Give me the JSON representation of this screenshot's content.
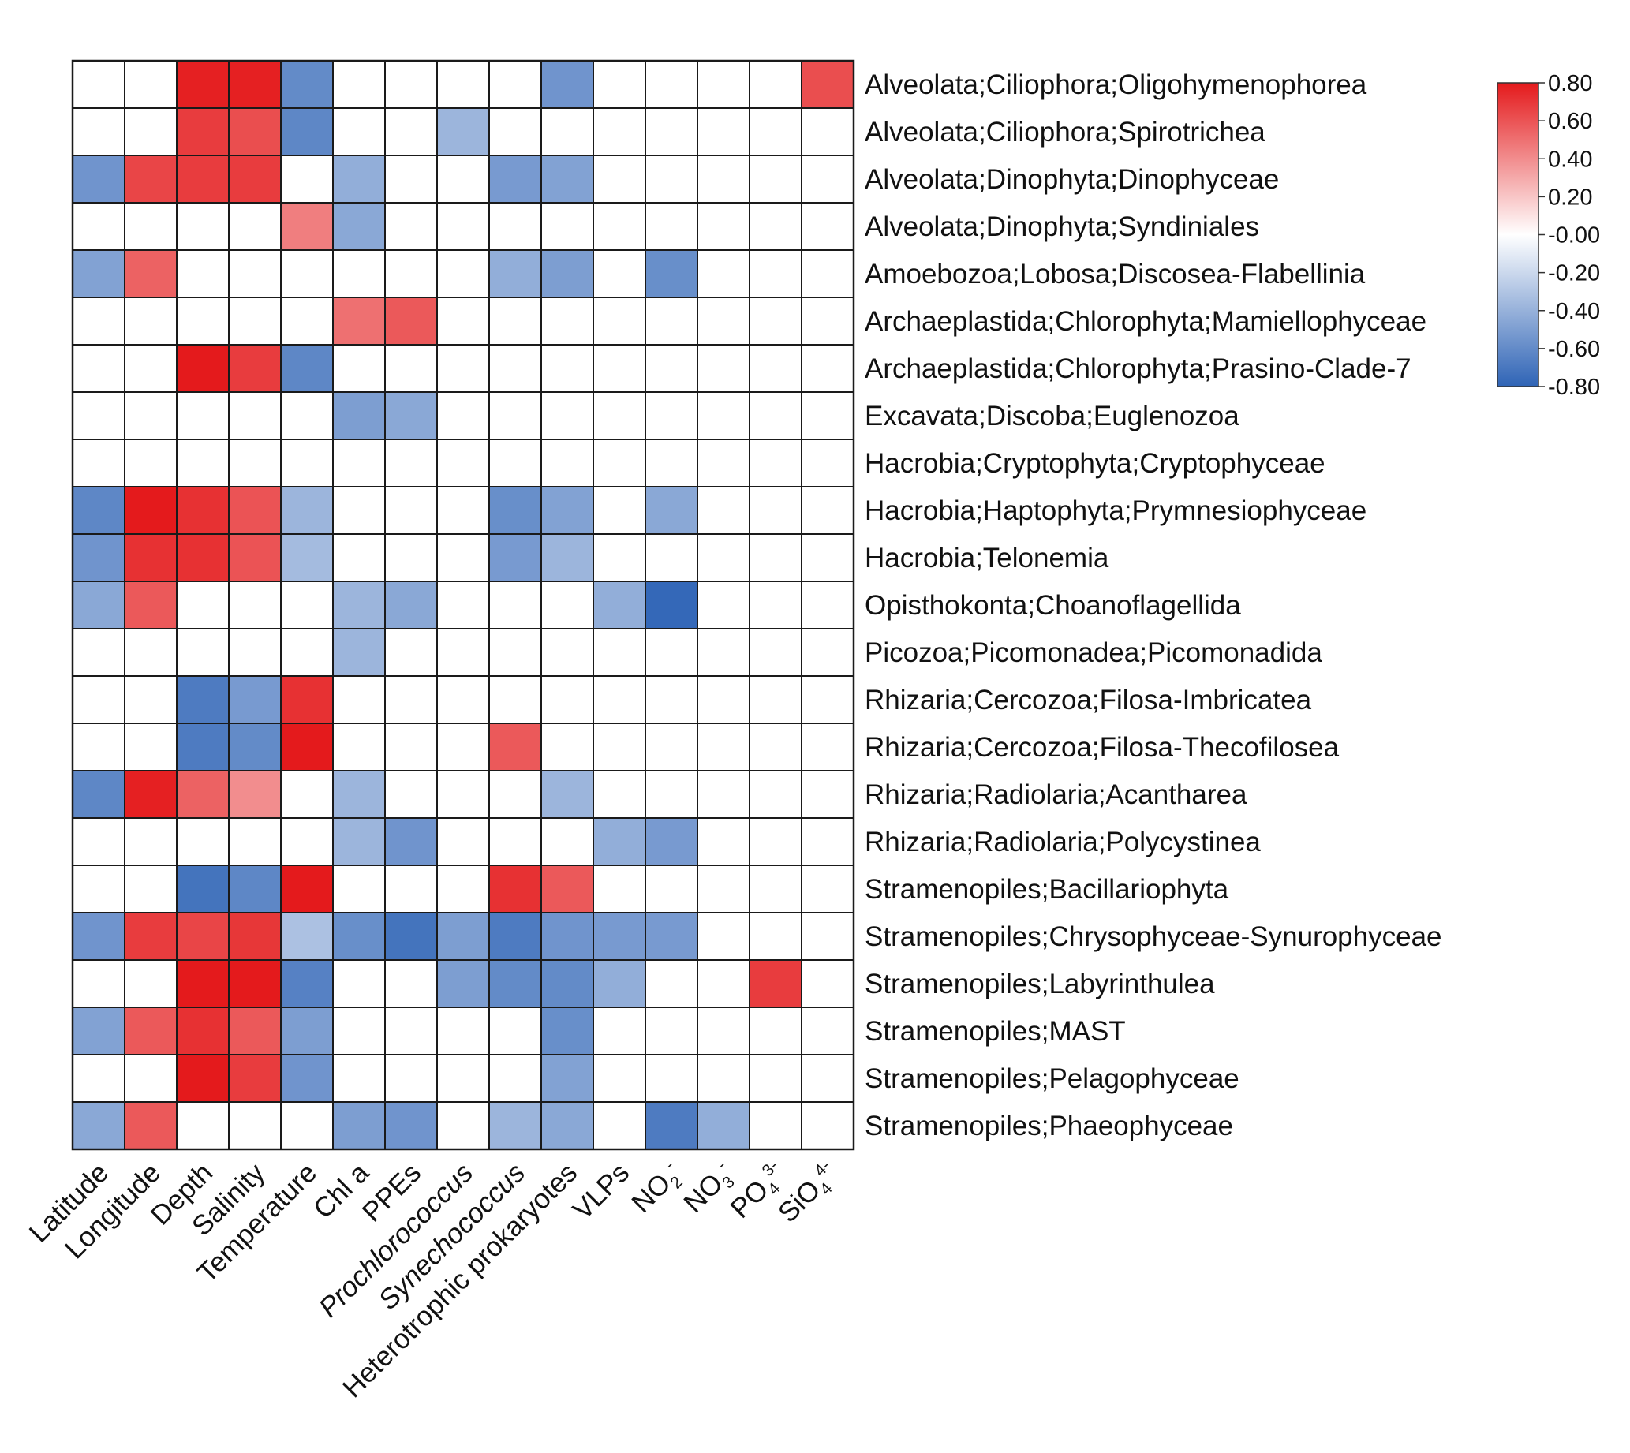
{
  "chart_data": {
    "type": "heatmap",
    "title": "",
    "xlabel": "",
    "ylabel": "",
    "columns": [
      {
        "label": "Latitude"
      },
      {
        "label": "Longitude"
      },
      {
        "label": "Depth"
      },
      {
        "label": "Salinity"
      },
      {
        "label": "Temperature"
      },
      {
        "label": "Chl a"
      },
      {
        "label": "PPEs"
      },
      {
        "label": "Prochlorococcus",
        "italic": true
      },
      {
        "label": "Synechococcus",
        "italic": true
      },
      {
        "label": "Heterotrophic prokaryotes"
      },
      {
        "label": "VLPs"
      },
      {
        "label": "NO",
        "sub": "2",
        "sup": "-"
      },
      {
        "label": "NO",
        "sub": "3",
        "sup": "-"
      },
      {
        "label": "PO",
        "sub": "4",
        "sup": "3-"
      },
      {
        "label": "SiO",
        "sub": "4",
        "sup": "4-"
      }
    ],
    "rows": [
      "Alveolata;Ciliophora;Oligohymenophorea",
      "Alveolata;Ciliophora;Spirotrichea",
      "Alveolata;Dinophyta;Dinophyceae",
      "Alveolata;Dinophyta;Syndiniales",
      "Amoebozoa;Lobosa;Discosea-Flabellinia",
      "Archaeplastida;Chlorophyta;Mamiellophyceae",
      "Archaeplastida;Chlorophyta;Prasino-Clade-7",
      "Excavata;Discoba;Euglenozoa",
      "Hacrobia;Cryptophyta;Cryptophyceae",
      "Hacrobia;Haptophyta;Prymnesiophyceae",
      "Hacrobia;Telonemia",
      "Opisthokonta;Choanoflagellida",
      "Picozoa;Picomonadea;Picomonadida",
      "Rhizaria;Cercozoa;Filosa-Imbricatea",
      "Rhizaria;Cercozoa;Filosa-Thecofilosea",
      "Rhizaria;Radiolaria;Acantharea",
      "Rhizaria;Radiolaria;Polycystinea",
      "Stramenopiles;Bacillariophyta",
      "Stramenopiles;Chrysophyceae-Synurophyceae",
      "Stramenopiles;Labyrinthulea",
      "Stramenopiles;MAST",
      "Stramenopiles;Pelagophyceae",
      "Stramenopiles;Phaeophyceae"
    ],
    "values": [
      [
        0,
        0,
        0.78,
        0.78,
        -0.6,
        0,
        0,
        0,
        0,
        -0.55,
        0,
        0,
        0,
        0,
        0.62
      ],
      [
        0,
        0,
        0.68,
        0.62,
        -0.62,
        0,
        0,
        -0.38,
        0,
        0,
        0,
        0,
        0,
        0,
        0
      ],
      [
        -0.55,
        0.65,
        0.68,
        0.68,
        0,
        -0.42,
        0,
        0,
        -0.52,
        -0.48,
        0,
        0,
        0,
        0,
        0
      ],
      [
        0,
        0,
        0,
        0,
        0.45,
        -0.45,
        0,
        0,
        0,
        0,
        0,
        0,
        0,
        0,
        0
      ],
      [
        -0.48,
        0.55,
        0,
        0,
        0,
        0,
        0,
        0,
        -0.42,
        -0.5,
        0,
        -0.58,
        0,
        0,
        0
      ],
      [
        0,
        0,
        0,
        0,
        0,
        0.5,
        0.58,
        0,
        0,
        0,
        0,
        0,
        0,
        0,
        0
      ],
      [
        0,
        0,
        0.85,
        0.68,
        -0.62,
        0,
        0,
        0,
        0,
        0,
        0,
        0,
        0,
        0,
        0
      ],
      [
        0,
        0,
        0,
        0,
        0,
        -0.5,
        -0.45,
        0,
        0,
        0,
        0,
        0,
        0,
        0,
        0
      ],
      [
        0,
        0,
        0,
        0,
        0,
        0,
        0,
        0,
        0,
        0,
        0,
        0,
        0,
        0,
        0
      ],
      [
        -0.62,
        0.82,
        0.72,
        0.6,
        -0.38,
        0,
        0,
        0,
        -0.58,
        -0.48,
        0,
        -0.45,
        0,
        0,
        0
      ],
      [
        -0.55,
        0.72,
        0.72,
        0.6,
        -0.35,
        0,
        0,
        0,
        -0.52,
        -0.38,
        0,
        0,
        0,
        0,
        0
      ],
      [
        -0.45,
        0.58,
        0,
        0,
        0,
        -0.38,
        -0.45,
        0,
        0,
        0,
        -0.42,
        -0.78,
        0,
        0,
        0
      ],
      [
        0,
        0,
        0,
        0,
        0,
        -0.38,
        0,
        0,
        0,
        0,
        0,
        0,
        0,
        0,
        0
      ],
      [
        0,
        0,
        -0.68,
        -0.52,
        0.72,
        0,
        0,
        0,
        0,
        0,
        0,
        0,
        0,
        0,
        0
      ],
      [
        0,
        0,
        -0.68,
        -0.6,
        0.8,
        0,
        0,
        0,
        0.58,
        0,
        0,
        0,
        0,
        0,
        0
      ],
      [
        -0.62,
        0.78,
        0.55,
        0.4,
        0,
        -0.38,
        0,
        0,
        0,
        -0.38,
        0,
        0,
        0,
        0,
        0
      ],
      [
        0,
        0,
        0,
        0,
        0,
        -0.38,
        -0.55,
        0,
        0,
        0,
        -0.42,
        -0.52,
        0,
        0,
        0
      ],
      [
        0,
        0,
        -0.72,
        -0.62,
        0.82,
        0,
        0,
        0,
        0.72,
        0.58,
        0,
        0,
        0,
        0,
        0
      ],
      [
        -0.55,
        0.68,
        0.65,
        0.7,
        -0.32,
        -0.58,
        -0.72,
        -0.5,
        -0.68,
        -0.55,
        -0.52,
        -0.52,
        0,
        0,
        0
      ],
      [
        0,
        0,
        0.85,
        0.82,
        -0.65,
        0,
        0,
        -0.5,
        -0.6,
        -0.6,
        -0.42,
        0,
        0,
        0.68,
        0
      ],
      [
        -0.48,
        0.58,
        0.72,
        0.58,
        -0.5,
        0,
        0,
        0,
        0,
        -0.58,
        0,
        0,
        0,
        0,
        0
      ],
      [
        0,
        0,
        0.82,
        0.68,
        -0.55,
        0,
        0,
        0,
        0,
        -0.48,
        0,
        0,
        0,
        0,
        0
      ],
      [
        -0.45,
        0.58,
        0,
        0,
        0,
        -0.5,
        -0.55,
        0,
        -0.38,
        -0.45,
        0,
        -0.68,
        -0.42,
        0,
        0
      ]
    ],
    "color_scale": {
      "min": -0.8,
      "max": 0.8,
      "low_color": "#2f64b6",
      "mid_color": "#ffffff",
      "high_color": "#e41a1c",
      "ticks": [
        "0.80",
        "0.60",
        "0.40",
        "0.20",
        "-0.00",
        "-0.20",
        "-0.40",
        "-0.60",
        "-0.80"
      ]
    },
    "legend": "right",
    "grid": true
  }
}
